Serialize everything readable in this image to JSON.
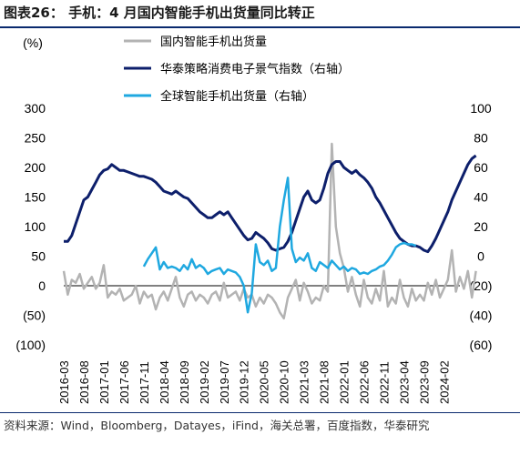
{
  "figure": {
    "title": "图表26：  手机：4 月国内智能手机出货量同比转正",
    "source": "资料来源：Wind，Bloomberg，Datayes，iFind，海关总署，百度指数，华泰研究"
  },
  "chart_data": {
    "type": "line",
    "title": "",
    "y_left_unit": "(%)",
    "y_left_ticks": [
      "300",
      "250",
      "200",
      "150",
      "100",
      "50",
      "0",
      "(50)",
      "(100)"
    ],
    "y_right_ticks": [
      "100",
      "80",
      "60",
      "40",
      "20",
      "0",
      "(20)",
      "(40)",
      "(60)"
    ],
    "ylim_left": [
      -100,
      300
    ],
    "ylim_right": [
      -60,
      100
    ],
    "x_ticks": [
      "2016-03",
      "2016-08",
      "2017-01",
      "2017-06",
      "2017-11",
      "2018-04",
      "2018-09",
      "2019-02",
      "2019-07",
      "2019-12",
      "2020-05",
      "2020-10",
      "2021-03",
      "2021-08",
      "2022-01",
      "2022-06",
      "2022-11",
      "2023-04",
      "2023-09",
      "2024-02"
    ],
    "x_start": "2016-03",
    "legend_position": "top",
    "grid": false,
    "series": [
      {
        "name": "国内智能手机出货量",
        "axis": "left",
        "color": "#b3b3b3",
        "start": "2016-03",
        "values": [
          25,
          -15,
          10,
          5,
          20,
          -5,
          5,
          15,
          -5,
          5,
          35,
          -20,
          -10,
          -15,
          -5,
          -25,
          -20,
          -15,
          0,
          -30,
          -10,
          -20,
          -15,
          -40,
          -20,
          -10,
          -25,
          -5,
          15,
          -20,
          -35,
          -15,
          -10,
          -25,
          -15,
          -20,
          -30,
          -15,
          -10,
          -25,
          5,
          -20,
          -15,
          -10,
          -25,
          -5,
          -20,
          -15,
          -35,
          -20,
          -30,
          -15,
          -20,
          -30,
          -45,
          -55,
          -20,
          -5,
          10,
          -25,
          5,
          -10,
          -30,
          -20,
          -25,
          0,
          -10,
          240,
          100,
          55,
          30,
          -10,
          15,
          -15,
          -35,
          10,
          -20,
          -30,
          -5,
          -25,
          25,
          -35,
          -20,
          -30,
          10,
          -20,
          -35,
          -5,
          -25,
          -15,
          -25,
          5,
          -15,
          10,
          -20,
          -5,
          10,
          60,
          -10,
          15,
          -5,
          25,
          -20,
          25
        ]
      },
      {
        "name": "华泰策略消费电子景气指数（右轴）",
        "axis": "right",
        "color": "#0d1f6b",
        "start": "2016-03",
        "values": [
          10,
          10,
          14,
          22,
          30,
          38,
          40,
          45,
          50,
          55,
          58,
          59,
          62,
          60,
          58,
          58,
          57,
          56,
          55,
          54,
          54,
          53,
          52,
          50,
          47,
          44,
          43,
          42,
          44,
          42,
          40,
          39,
          36,
          33,
          30,
          28,
          26,
          26,
          28,
          30,
          28,
          30,
          26,
          22,
          18,
          14,
          11,
          12,
          16,
          14,
          12,
          9,
          5,
          4,
          5,
          6,
          10,
          16,
          24,
          32,
          40,
          44,
          38,
          36,
          38,
          46,
          56,
          62,
          64,
          64,
          60,
          58,
          56,
          58,
          55,
          53,
          50,
          46,
          40,
          36,
          31,
          26,
          21,
          16,
          12,
          10,
          8,
          7,
          7,
          6,
          4,
          3,
          7,
          12,
          18,
          24,
          30,
          38,
          44,
          50,
          56,
          62,
          66,
          68
        ]
      },
      {
        "name": "全球智能手机出货量（右轴）",
        "axis": "right",
        "color": "#1fa8e0",
        "start": "2017-11",
        "values": [
          -7,
          -2,
          2,
          6,
          -9,
          -4,
          -8,
          -7,
          -8,
          -10,
          -6,
          -9,
          -2,
          -8,
          -6,
          -8,
          -12,
          -10,
          -9,
          -8,
          -12,
          -9,
          -10,
          -11,
          -14,
          -20,
          -38,
          -25,
          8,
          -4,
          -6,
          -3,
          -10,
          -8,
          20,
          38,
          53,
          5,
          -4,
          -1,
          -3,
          2,
          -8,
          -10,
          -4,
          -6,
          -8,
          -3,
          -6,
          -9,
          -7,
          -10,
          -8,
          -9,
          -12,
          -11,
          -12,
          -10,
          -9,
          -7,
          -6,
          -3,
          1,
          6,
          8,
          9,
          8,
          8,
          7
        ]
      }
    ]
  }
}
